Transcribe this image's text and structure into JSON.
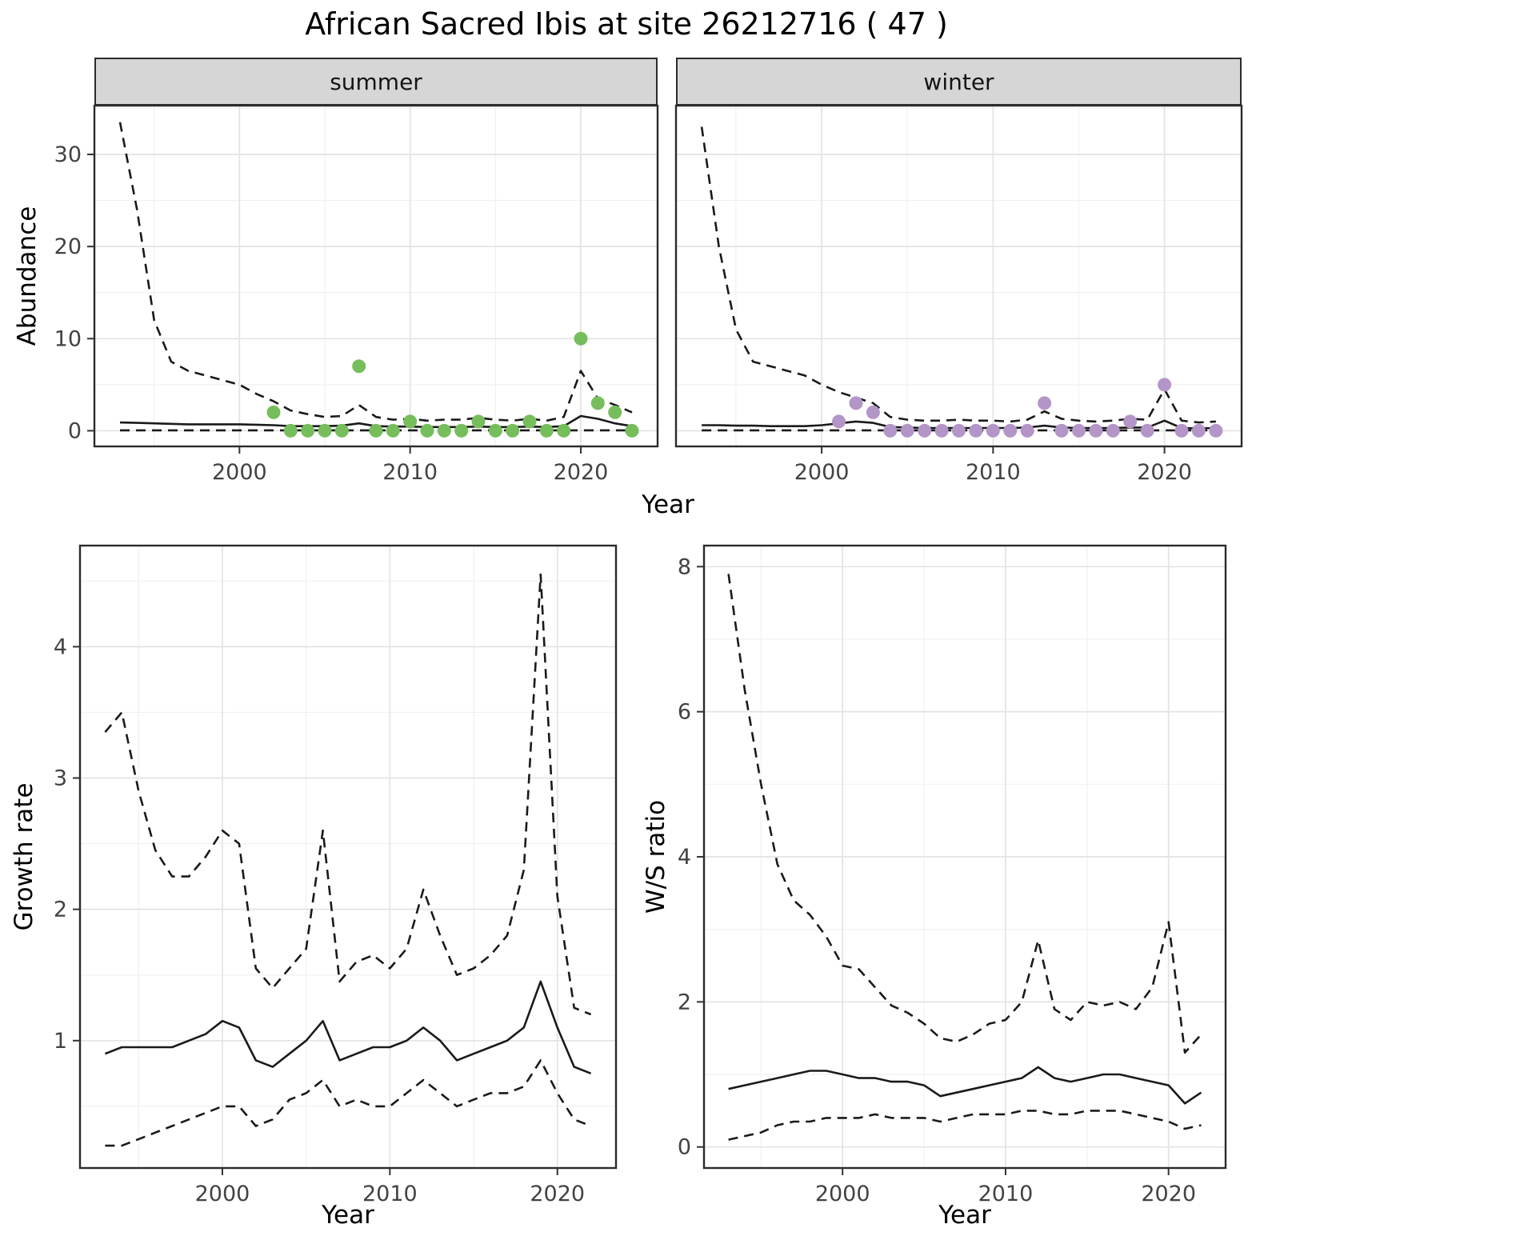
{
  "title": "African Sacred Ibis at site 26212716 ( 47 )",
  "colors": {
    "line": "#1a1a1a",
    "grid_major": "#e3e3e3",
    "grid_minor": "#f1f1f1",
    "panel_border": "#2b2b2b",
    "strip_bg": "#d6d6d6",
    "tick_text": "#424242",
    "summer_point": "#76BE5C",
    "winter_point": "#B495C7"
  },
  "chart_data": [
    {
      "key": "abundance-summer",
      "type": "line",
      "strip": "summer",
      "ylabel": "Abundance",
      "xlabel": "Year",
      "xlim": [
        1991.5,
        2024.5
      ],
      "ylim": [
        -1.7,
        35.3
      ],
      "xticks": [
        2000,
        2010,
        2020
      ],
      "xminor": [
        1995,
        2005,
        2015
      ],
      "yticks": [
        0,
        10,
        20,
        30
      ],
      "yminor": [
        5,
        15,
        25,
        35
      ],
      "x": [
        1993,
        1994,
        1995,
        1996,
        1997,
        1998,
        1999,
        2000,
        2001,
        2002,
        2003,
        2004,
        2005,
        2006,
        2007,
        2008,
        2009,
        2010,
        2011,
        2012,
        2013,
        2014,
        2015,
        2016,
        2017,
        2018,
        2019,
        2020,
        2021,
        2022,
        2023
      ],
      "series": [
        {
          "name": "upper_ci",
          "dash": true,
          "values": [
            33.5,
            24,
            12,
            7.5,
            6.5,
            6,
            5.5,
            5,
            4,
            3.2,
            2.2,
            1.8,
            1.5,
            1.6,
            2.8,
            1.5,
            1.2,
            1.3,
            1.1,
            1.2,
            1.2,
            1.4,
            1.2,
            1.1,
            1.3,
            1.1,
            1.5,
            6.5,
            3.5,
            2.8,
            2
          ]
        },
        {
          "name": "median",
          "dash": false,
          "values": [
            0.9,
            0.85,
            0.8,
            0.75,
            0.7,
            0.7,
            0.7,
            0.7,
            0.65,
            0.6,
            0.5,
            0.5,
            0.5,
            0.55,
            0.8,
            0.5,
            0.45,
            0.45,
            0.4,
            0.4,
            0.4,
            0.45,
            0.4,
            0.4,
            0.45,
            0.4,
            0.5,
            1.6,
            1.3,
            0.8,
            0.5
          ]
        },
        {
          "name": "lower_ci",
          "dash": true,
          "values": [
            0.05,
            0.05,
            0.05,
            0.05,
            0.05,
            0.05,
            0.05,
            0.05,
            0.05,
            0.05,
            0.05,
            0.05,
            0.05,
            0.05,
            0.05,
            0.05,
            0.05,
            0.05,
            0.05,
            0.05,
            0.05,
            0.05,
            0.05,
            0.05,
            0.05,
            0.05,
            0.05,
            0.05,
            0.05,
            0.05,
            0.05
          ]
        }
      ],
      "points": {
        "name": "observed-counts",
        "color": "#76BE5C",
        "x": [
          2002,
          2003,
          2004,
          2005,
          2006,
          2007,
          2008,
          2009,
          2010,
          2011,
          2012,
          2013,
          2014,
          2015,
          2016,
          2017,
          2018,
          2019,
          2020,
          2021,
          2022,
          2023
        ],
        "values": [
          2,
          0,
          0,
          0,
          0,
          7,
          0,
          0,
          1,
          0,
          0,
          0,
          1,
          0,
          0,
          1,
          0,
          0,
          10,
          3,
          2,
          0
        ]
      }
    },
    {
      "key": "abundance-winter",
      "type": "line",
      "strip": "winter",
      "ylabel": "Abundance",
      "xlabel": "Year",
      "xlim": [
        1991.5,
        2024.5
      ],
      "ylim": [
        -1.7,
        35.3
      ],
      "xticks": [
        2000,
        2010,
        2020
      ],
      "xminor": [
        1995,
        2005,
        2015
      ],
      "yticks": [
        0,
        10,
        20,
        30
      ],
      "yminor": [
        5,
        15,
        25,
        35
      ],
      "x": [
        1993,
        1994,
        1995,
        1996,
        1997,
        1998,
        1999,
        2000,
        2001,
        2002,
        2003,
        2004,
        2005,
        2006,
        2007,
        2008,
        2009,
        2010,
        2011,
        2012,
        2013,
        2014,
        2015,
        2016,
        2017,
        2018,
        2019,
        2020,
        2021,
        2022,
        2023
      ],
      "series": [
        {
          "name": "upper_ci",
          "dash": true,
          "values": [
            33,
            20,
            11,
            7.5,
            7,
            6.5,
            6,
            5,
            4.2,
            3.6,
            3,
            1.5,
            1.2,
            1.1,
            1.1,
            1.2,
            1.1,
            1.1,
            1,
            1.2,
            2.1,
            1.3,
            1.1,
            1,
            1.1,
            1.3,
            1.2,
            4.5,
            1.1,
            0.9,
            1
          ]
        },
        {
          "name": "median",
          "dash": false,
          "values": [
            0.6,
            0.6,
            0.55,
            0.55,
            0.5,
            0.5,
            0.5,
            0.6,
            0.8,
            1.0,
            0.85,
            0.4,
            0.35,
            0.3,
            0.3,
            0.3,
            0.3,
            0.3,
            0.3,
            0.35,
            0.55,
            0.35,
            0.3,
            0.3,
            0.3,
            0.35,
            0.35,
            1.1,
            0.3,
            0.25,
            0.3
          ]
        },
        {
          "name": "lower_ci",
          "dash": true,
          "values": [
            0.05,
            0.05,
            0.05,
            0.05,
            0.05,
            0.05,
            0.05,
            0.05,
            0.05,
            0.05,
            0.05,
            0.05,
            0.05,
            0.05,
            0.05,
            0.05,
            0.05,
            0.05,
            0.05,
            0.05,
            0.05,
            0.05,
            0.05,
            0.05,
            0.05,
            0.05,
            0.05,
            0.05,
            0.05,
            0.05,
            0.05
          ]
        }
      ],
      "points": {
        "name": "observed-counts",
        "color": "#B495C7",
        "x": [
          2001,
          2002,
          2003,
          2004,
          2005,
          2006,
          2007,
          2008,
          2009,
          2010,
          2011,
          2012,
          2013,
          2014,
          2015,
          2016,
          2017,
          2018,
          2019,
          2020,
          2021,
          2022,
          2023
        ],
        "values": [
          1,
          3,
          2,
          0,
          0,
          0,
          0,
          0,
          0,
          0,
          0,
          0,
          3,
          0,
          0,
          0,
          0,
          1,
          0,
          5,
          0,
          0,
          0
        ]
      }
    },
    {
      "key": "growth-rate",
      "type": "line",
      "strip": "",
      "ylabel": "Growth rate",
      "xlabel": "Year",
      "xlim": [
        1991.5,
        2023.5
      ],
      "ylim": [
        0.03,
        4.77
      ],
      "xticks": [
        2000,
        2010,
        2020
      ],
      "xminor": [
        1995,
        2005,
        2015
      ],
      "yticks": [
        1,
        2,
        3,
        4
      ],
      "yminor": [
        0.5,
        1.5,
        2.5,
        3.5,
        4.5
      ],
      "x": [
        1993,
        1994,
        1995,
        1996,
        1997,
        1998,
        1999,
        2000,
        2001,
        2002,
        2003,
        2004,
        2005,
        2006,
        2007,
        2008,
        2009,
        2010,
        2011,
        2012,
        2013,
        2014,
        2015,
        2016,
        2017,
        2018,
        2019,
        2020,
        2021,
        2022
      ],
      "series": [
        {
          "name": "upper_ci",
          "dash": true,
          "values": [
            3.35,
            3.5,
            2.9,
            2.45,
            2.25,
            2.25,
            2.4,
            2.6,
            2.5,
            1.55,
            1.4,
            1.55,
            1.7,
            2.6,
            1.45,
            1.6,
            1.65,
            1.55,
            1.7,
            2.15,
            1.8,
            1.5,
            1.55,
            1.65,
            1.8,
            2.3,
            4.55,
            2.1,
            1.25,
            1.2
          ]
        },
        {
          "name": "median",
          "dash": false,
          "values": [
            0.9,
            0.95,
            0.95,
            0.95,
            0.95,
            1.0,
            1.05,
            1.15,
            1.1,
            0.85,
            0.8,
            0.9,
            1.0,
            1.15,
            0.85,
            0.9,
            0.95,
            0.95,
            1.0,
            1.1,
            1.0,
            0.85,
            0.9,
            0.95,
            1.0,
            1.1,
            1.45,
            1.1,
            0.8,
            0.75
          ]
        },
        {
          "name": "lower_ci",
          "dash": true,
          "values": [
            0.2,
            0.2,
            0.25,
            0.3,
            0.35,
            0.4,
            0.45,
            0.5,
            0.5,
            0.35,
            0.4,
            0.55,
            0.6,
            0.7,
            0.5,
            0.55,
            0.5,
            0.5,
            0.6,
            0.7,
            0.6,
            0.5,
            0.55,
            0.6,
            0.6,
            0.65,
            0.85,
            0.6,
            0.4,
            0.35
          ]
        }
      ],
      "points": null
    },
    {
      "key": "ws-ratio",
      "type": "line",
      "strip": "",
      "ylabel": "W/S ratio",
      "xlabel": "Year",
      "xlim": [
        1991.5,
        2023.5
      ],
      "ylim": [
        -0.29,
        8.29
      ],
      "xticks": [
        2000,
        2010,
        2020
      ],
      "xminor": [
        1995,
        2005,
        2015
      ],
      "yticks": [
        0,
        2,
        4,
        6,
        8
      ],
      "yminor": [
        1,
        3,
        5,
        7
      ],
      "x": [
        1993,
        1994,
        1995,
        1996,
        1997,
        1998,
        1999,
        2000,
        2001,
        2002,
        2003,
        2004,
        2005,
        2006,
        2007,
        2008,
        2009,
        2010,
        2011,
        2012,
        2013,
        2014,
        2015,
        2016,
        2017,
        2018,
        2019,
        2020,
        2021,
        2022
      ],
      "series": [
        {
          "name": "upper_ci",
          "dash": true,
          "values": [
            7.9,
            6.3,
            5.0,
            3.9,
            3.4,
            3.2,
            2.9,
            2.5,
            2.45,
            2.2,
            1.95,
            1.85,
            1.7,
            1.5,
            1.45,
            1.55,
            1.7,
            1.75,
            2.0,
            2.85,
            1.9,
            1.75,
            2.0,
            1.95,
            2.0,
            1.9,
            2.2,
            3.1,
            1.3,
            1.55
          ]
        },
        {
          "name": "median",
          "dash": false,
          "values": [
            0.8,
            0.85,
            0.9,
            0.95,
            1.0,
            1.05,
            1.05,
            1.0,
            0.95,
            0.95,
            0.9,
            0.9,
            0.85,
            0.7,
            0.75,
            0.8,
            0.85,
            0.9,
            0.95,
            1.1,
            0.95,
            0.9,
            0.95,
            1.0,
            1.0,
            0.95,
            0.9,
            0.85,
            0.6,
            0.75
          ]
        },
        {
          "name": "lower_ci",
          "dash": true,
          "values": [
            0.1,
            0.15,
            0.2,
            0.3,
            0.35,
            0.35,
            0.4,
            0.4,
            0.4,
            0.45,
            0.4,
            0.4,
            0.4,
            0.35,
            0.4,
            0.45,
            0.45,
            0.45,
            0.5,
            0.5,
            0.45,
            0.45,
            0.5,
            0.5,
            0.5,
            0.45,
            0.4,
            0.35,
            0.25,
            0.3
          ]
        }
      ],
      "points": null
    }
  ]
}
